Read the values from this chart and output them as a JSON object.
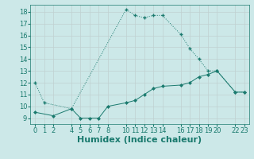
{
  "line1_x": [
    0,
    1,
    4,
    10,
    11,
    12,
    13,
    14,
    16,
    17,
    18,
    19,
    20,
    22,
    23
  ],
  "line1_y": [
    12,
    10.3,
    9.8,
    18.2,
    17.7,
    17.5,
    17.7,
    17.7,
    16.1,
    14.9,
    14.0,
    13.0,
    13.0,
    11.2,
    11.2
  ],
  "line2_x": [
    0,
    2,
    4,
    5,
    6,
    7,
    8,
    10,
    11,
    12,
    13,
    14,
    16,
    17,
    18,
    19,
    20,
    22,
    23
  ],
  "line2_y": [
    9.5,
    9.2,
    9.8,
    9.0,
    9.0,
    9.0,
    10.0,
    10.3,
    10.5,
    11.0,
    11.5,
    11.7,
    11.8,
    12.0,
    12.5,
    12.7,
    13.0,
    11.2,
    11.2
  ],
  "line_color": "#1a7a6e",
  "bg_color": "#cce8e8",
  "grid_color": "#c0d0d0",
  "xlabel": "Humidex (Indice chaleur)",
  "xlim": [
    -0.5,
    23.5
  ],
  "ylim": [
    8.5,
    18.6
  ],
  "xticks": [
    0,
    1,
    2,
    4,
    5,
    6,
    7,
    8,
    10,
    11,
    12,
    13,
    14,
    16,
    17,
    18,
    19,
    20,
    22,
    23
  ],
  "yticks": [
    9,
    10,
    11,
    12,
    13,
    14,
    15,
    16,
    17,
    18
  ],
  "axis_fontsize": 7,
  "tick_fontsize": 6
}
